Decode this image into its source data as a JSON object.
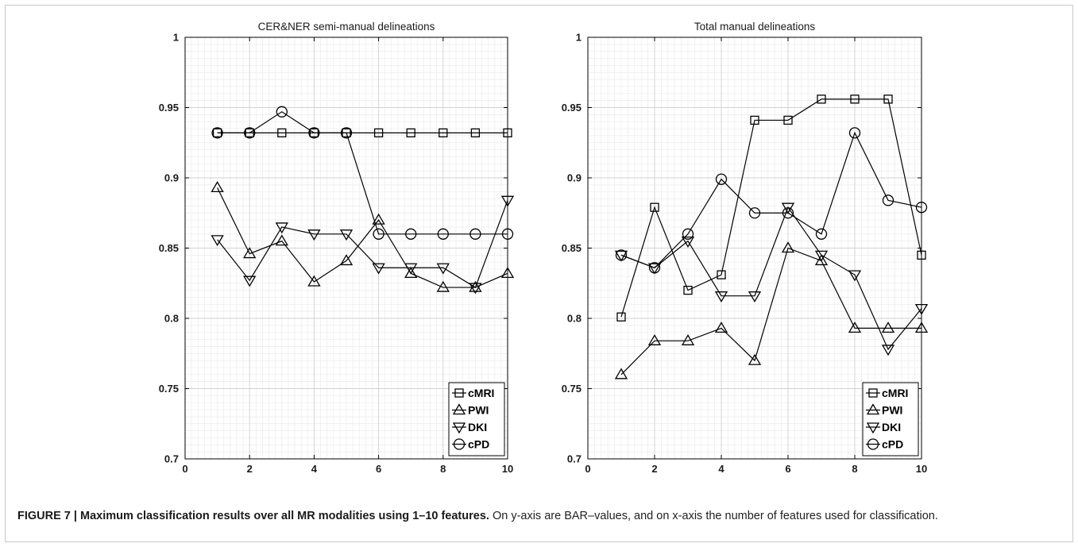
{
  "figure": {
    "caption_label": "FIGURE 7 | Maximum classification results over all MR modalities using 1–10 features.",
    "caption_text": " On y-axis are BAR–values, and on x-axis the number of features used for classification."
  },
  "chart_data": [
    {
      "type": "line",
      "title": "CER&NER semi-manual delineations",
      "xlabel": "",
      "ylabel": "",
      "xlim": [
        0,
        10
      ],
      "ylim": [
        0.7,
        1
      ],
      "xticks": [
        "0",
        "2",
        "4",
        "6",
        "8",
        "10"
      ],
      "yticks": [
        "0.7",
        "0.75",
        "0.8",
        "0.85",
        "0.9",
        "0.95",
        "1"
      ],
      "grid": "on (major and minor)",
      "legend": "bottom-right",
      "x": [
        1,
        2,
        3,
        4,
        5,
        6,
        7,
        8,
        9,
        10
      ],
      "series": [
        {
          "name": "cMRI",
          "marker": "square",
          "values": [
            0.932,
            0.932,
            0.932,
            0.932,
            0.932,
            0.932,
            0.932,
            0.932,
            0.932,
            0.932
          ]
        },
        {
          "name": "PWI",
          "marker": "triangle-up",
          "values": [
            0.893,
            0.846,
            0.855,
            0.826,
            0.841,
            0.87,
            0.832,
            0.822,
            0.822,
            0.832
          ]
        },
        {
          "name": "DKI",
          "marker": "triangle-down",
          "values": [
            0.856,
            0.827,
            0.865,
            0.86,
            0.86,
            0.836,
            0.836,
            0.836,
            0.822,
            0.884
          ]
        },
        {
          "name": "cPD",
          "marker": "circle",
          "values": [
            0.932,
            0.932,
            0.947,
            0.932,
            0.932,
            0.86,
            0.86,
            0.86,
            0.86,
            0.86
          ]
        }
      ]
    },
    {
      "type": "line",
      "title": "Total manual delineations",
      "xlabel": "",
      "ylabel": "",
      "xlim": [
        0,
        10
      ],
      "ylim": [
        0.7,
        1
      ],
      "xticks": [
        "0",
        "2",
        "4",
        "6",
        "8",
        "10"
      ],
      "yticks": [
        "0.7",
        "0.75",
        "0.8",
        "0.85",
        "0.9",
        "0.95",
        "1"
      ],
      "grid": "on (major and minor)",
      "legend": "bottom-right",
      "x": [
        1,
        2,
        3,
        4,
        5,
        6,
        7,
        8,
        9,
        10
      ],
      "series": [
        {
          "name": "cMRI",
          "marker": "square",
          "values": [
            0.801,
            0.879,
            0.82,
            0.831,
            0.941,
            0.941,
            0.956,
            0.956,
            0.956,
            0.845
          ]
        },
        {
          "name": "PWI",
          "marker": "triangle-up",
          "values": [
            0.76,
            0.784,
            0.784,
            0.793,
            0.77,
            0.85,
            0.841,
            0.793,
            0.793,
            0.793
          ]
        },
        {
          "name": "DKI",
          "marker": "triangle-down",
          "values": [
            0.845,
            0.836,
            0.855,
            0.816,
            0.816,
            0.879,
            0.845,
            0.831,
            0.778,
            0.807
          ]
        },
        {
          "name": "cPD",
          "marker": "circle",
          "values": [
            0.845,
            0.836,
            0.86,
            0.899,
            0.875,
            0.875,
            0.86,
            0.932,
            0.884,
            0.879
          ]
        }
      ]
    }
  ]
}
